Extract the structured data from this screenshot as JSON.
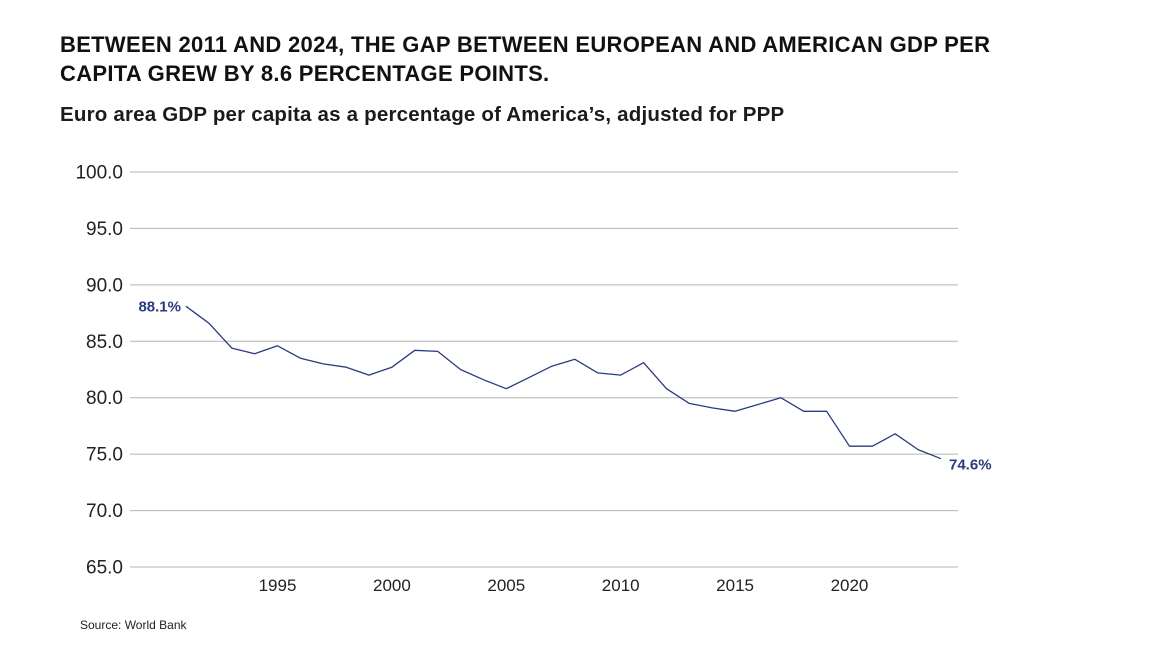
{
  "header": {
    "title": "BETWEEN 2011 AND 2024, THE GAP BETWEEN EUROPEAN AND AMERICAN GDP PER CAPITA GREW BY 8.6 PERCENTAGE POINTS.",
    "subtitle": "Euro area GDP per capita as a percentage of America’s, adjusted for PPP"
  },
  "footer": {
    "source": "Source: World Bank"
  },
  "colors": {
    "line": "#2b3b7e",
    "grid": "#b5b5b5",
    "text": "#222222"
  },
  "chart_data": {
    "type": "line",
    "title": "BETWEEN 2011 AND 2024, THE GAP BETWEEN EUROPEAN AND AMERICAN GDP PER CAPITA GREW BY 8.6 PERCENTAGE POINTS.",
    "subtitle": "Euro area GDP per capita as a percentage of America’s, adjusted for PPP",
    "xlabel": "",
    "ylabel": "",
    "xlim": [
      1990,
      2025
    ],
    "ylim": [
      65,
      100
    ],
    "grid": true,
    "y_ticks": [
      "100.0",
      "95.0",
      "90.0",
      "85.0",
      "80.0",
      "75.0",
      "70.0",
      "65.0"
    ],
    "x_ticks": [
      "1995",
      "2000",
      "2005",
      "2010",
      "2015",
      "2020"
    ],
    "series": [
      {
        "x": [
          1991,
          1992,
          1993,
          1994,
          1995,
          1996,
          1997,
          1998,
          1999,
          2000,
          2001,
          2002,
          2003,
          2004,
          2005,
          2006,
          2007,
          2008,
          2009,
          2010,
          2011,
          2012,
          2013,
          2014,
          2015,
          2016,
          2017,
          2018,
          2019,
          2020,
          2021,
          2022,
          2023,
          2024
        ],
        "values": [
          88.1,
          86.6,
          84.4,
          83.9,
          84.6,
          83.5,
          83.0,
          82.7,
          82.0,
          82.7,
          84.2,
          84.1,
          82.5,
          81.6,
          80.8,
          81.8,
          82.8,
          83.4,
          82.2,
          82.0,
          83.1,
          80.8,
          79.5,
          79.1,
          78.8,
          79.4,
          80.0,
          78.8,
          78.8,
          75.7,
          75.7,
          76.8,
          75.4,
          74.6
        ]
      }
    ],
    "annotations": [
      {
        "text": "88.1%",
        "x": 1991,
        "y": 88.1
      },
      {
        "text": "74.6%",
        "x": 2024,
        "y": 74.6
      }
    ]
  }
}
